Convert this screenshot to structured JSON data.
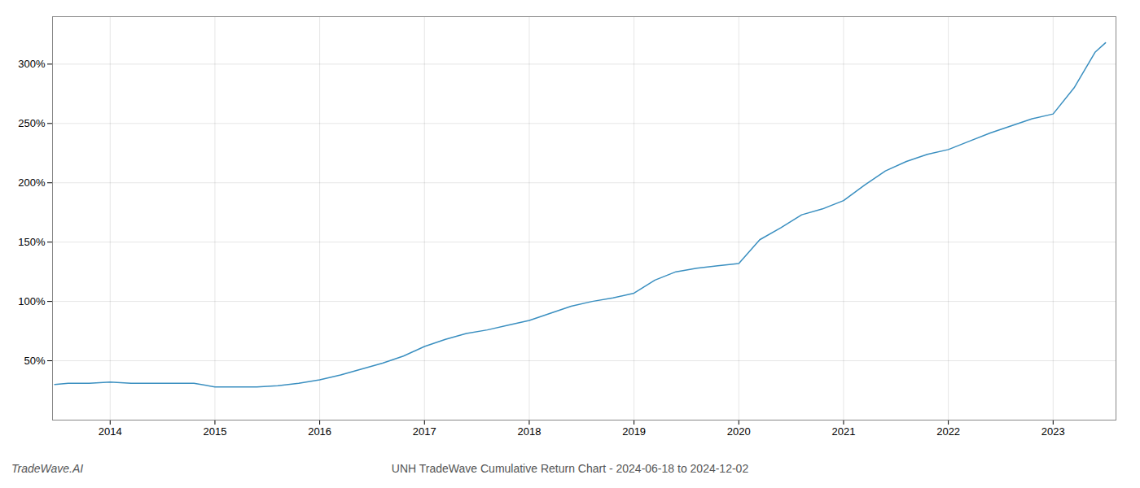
{
  "chart_data": {
    "type": "line",
    "title": "UNH TradeWave Cumulative Return Chart - 2024-06-18 to 2024-12-02",
    "annotations": [
      "TradeWave.AI"
    ],
    "color": "#3a8fc0",
    "x": [
      2013.47,
      2013.6,
      2013.8,
      2014.0,
      2014.2,
      2014.4,
      2014.6,
      2014.8,
      2015.0,
      2015.2,
      2015.4,
      2015.6,
      2015.8,
      2016.0,
      2016.2,
      2016.4,
      2016.6,
      2016.8,
      2017.0,
      2017.2,
      2017.4,
      2017.6,
      2017.8,
      2018.0,
      2018.2,
      2018.4,
      2018.6,
      2018.8,
      2019.0,
      2019.2,
      2019.4,
      2019.6,
      2019.8,
      2020.0,
      2020.2,
      2020.4,
      2020.6,
      2020.8,
      2021.0,
      2021.2,
      2021.4,
      2021.6,
      2021.8,
      2022.0,
      2022.2,
      2022.4,
      2022.6,
      2022.8,
      2023.0,
      2023.2,
      2023.4,
      2023.5
    ],
    "values": [
      30,
      31,
      31,
      32,
      31,
      31,
      31,
      31,
      28,
      28,
      28,
      29,
      31,
      34,
      38,
      43,
      48,
      54,
      62,
      68,
      73,
      76,
      80,
      84,
      90,
      96,
      100,
      103,
      107,
      118,
      125,
      128,
      130,
      132,
      152,
      162,
      173,
      178,
      185,
      198,
      210,
      218,
      224,
      228,
      235,
      242,
      248,
      254,
      258,
      280,
      310,
      318
    ],
    "xlim": [
      2013.45,
      2023.6
    ],
    "ylim": [
      0,
      340
    ],
    "xticks": [
      2014,
      2015,
      2016,
      2017,
      2018,
      2019,
      2020,
      2021,
      2022,
      2023
    ],
    "yticks": [
      {
        "value": 50,
        "label": "50%"
      },
      {
        "value": 100,
        "label": "100%"
      },
      {
        "value": 150,
        "label": "150%"
      },
      {
        "value": 200,
        "label": "200%"
      },
      {
        "value": 250,
        "label": "250%"
      },
      {
        "value": 300,
        "label": "300%"
      }
    ],
    "grid": true
  }
}
